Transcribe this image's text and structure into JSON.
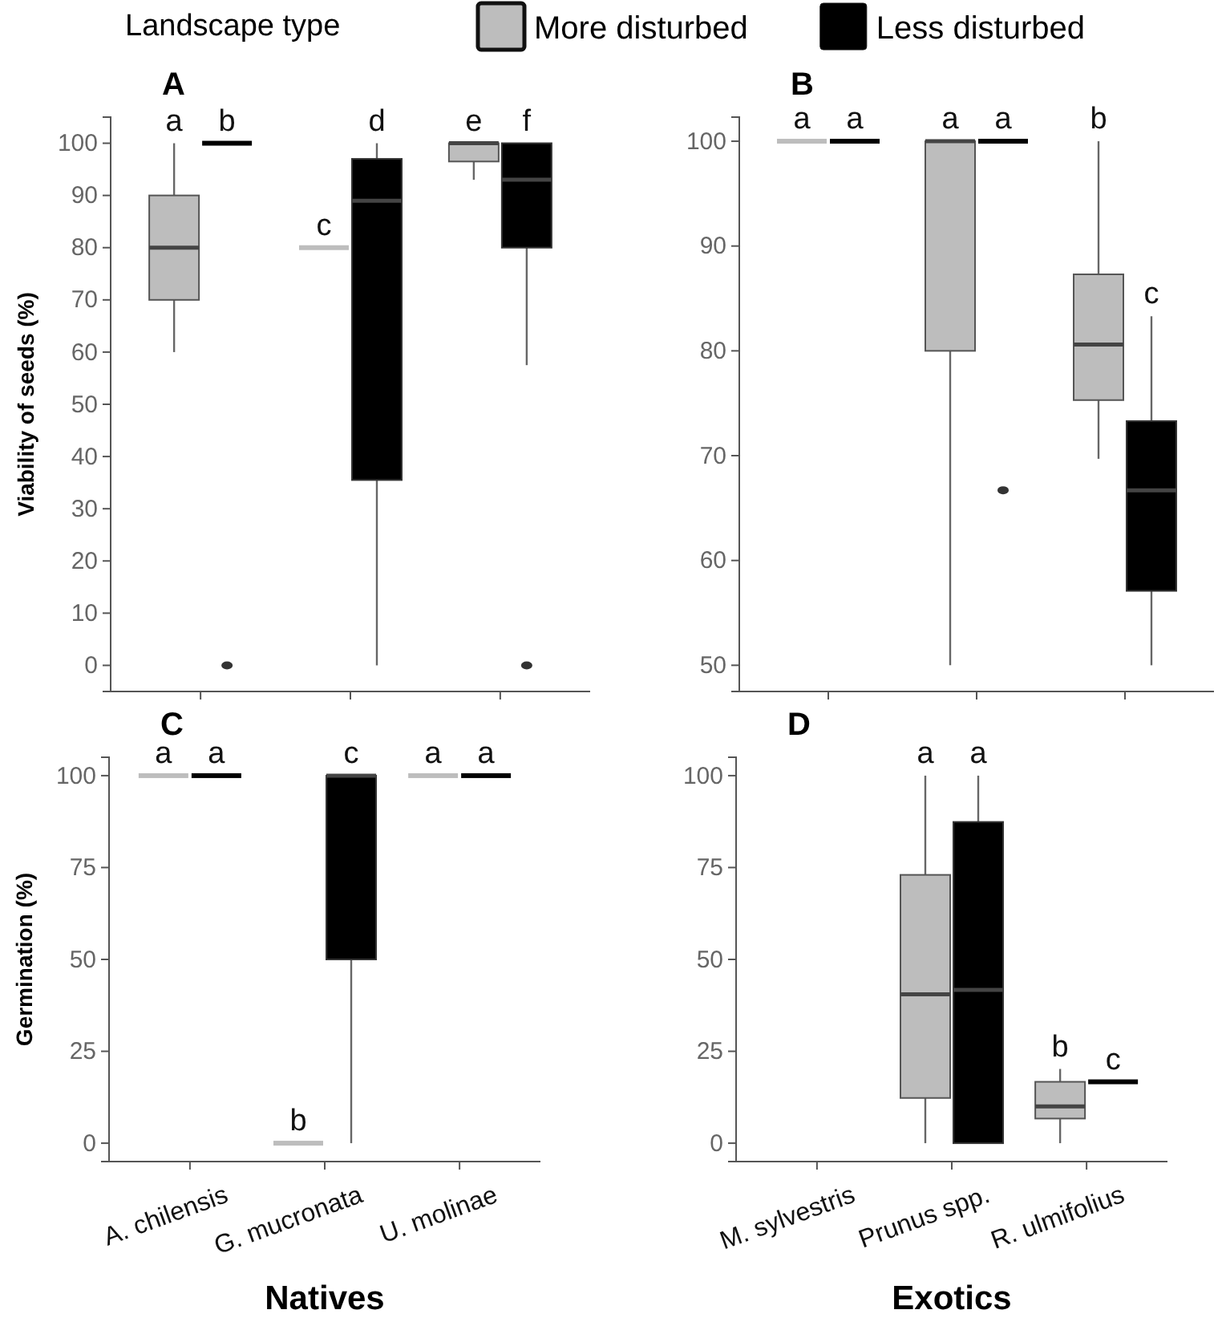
{
  "chart_data": [
    {
      "type": "box",
      "title": "A",
      "ylabel": "Viability of seeds (%)",
      "legend_title": "Landscape type",
      "legend": "top",
      "categories": [
        null,
        null,
        null
      ],
      "ylim": [
        -5,
        105
      ],
      "yticks": [
        0,
        10,
        20,
        30,
        40,
        50,
        60,
        70,
        80,
        90,
        100
      ],
      "series": [
        {
          "name": "More disturbed",
          "color": "#bdbdbd",
          "boxes": [
            {
              "low": 60,
              "q1": 70,
              "median": 80,
              "q3": 90,
              "high": 100
            },
            {
              "low": 80,
              "q1": 80,
              "median": 80,
              "q3": 80,
              "high": 80
            },
            {
              "low": 93,
              "q1": 96.5,
              "median": 100,
              "q3": 100,
              "high": 100
            }
          ]
        },
        {
          "name": "Less disturbed",
          "color": "#000000",
          "boxes": [
            {
              "low": 100,
              "q1": 100,
              "median": 100,
              "q3": 100,
              "high": 100,
              "outliers": [
                0
              ]
            },
            {
              "low": 0,
              "q1": 35.5,
              "median": 89,
              "q3": 97,
              "high": 100
            },
            {
              "low": 57.5,
              "q1": 80,
              "median": 93,
              "q3": 100,
              "high": 100,
              "outliers": [
                0
              ]
            }
          ]
        }
      ],
      "annotations": [
        "a",
        "b",
        "c",
        "d",
        "e",
        "f"
      ]
    },
    {
      "type": "box",
      "title": "B",
      "categories": [
        null,
        null,
        null
      ],
      "ylim": [
        47.5,
        102.3
      ],
      "yticks": [
        50,
        60,
        70,
        80,
        90,
        100
      ],
      "series": [
        {
          "color": "#bdbdbd",
          "boxes": [
            {
              "low": 100,
              "q1": 100,
              "median": 100,
              "q3": 100,
              "high": 100
            },
            {
              "low": 50,
              "q1": 80,
              "median": 100,
              "q3": 100,
              "high": 100
            },
            {
              "low": 69.7,
              "q1": 75.3,
              "median": 80.6,
              "q3": 87.3,
              "high": 100
            }
          ]
        },
        {
          "color": "#000000",
          "boxes": [
            {
              "low": 100,
              "q1": 100,
              "median": 100,
              "q3": 100,
              "high": 100
            },
            {
              "low": 100,
              "q1": 100,
              "median": 100,
              "q3": 100,
              "high": 100,
              "outliers": [
                66.7
              ]
            },
            {
              "low": 50,
              "q1": 57.1,
              "median": 66.7,
              "q3": 73.3,
              "high": 83.3
            }
          ]
        }
      ],
      "annotations": [
        "a",
        "a",
        "a",
        "a",
        "b",
        "c"
      ]
    },
    {
      "type": "box",
      "title": "C",
      "ylabel": "Germination (%)",
      "xlabel": "Natives",
      "categories": [
        "A. chilensis",
        "G. mucronata",
        "U. molinae"
      ],
      "ylim": [
        -5,
        105
      ],
      "yticks": [
        0,
        25,
        50,
        75,
        100
      ],
      "series": [
        {
          "color": "#bdbdbd",
          "boxes": [
            {
              "low": 100,
              "q1": 100,
              "median": 100,
              "q3": 100,
              "high": 100
            },
            {
              "low": 0,
              "q1": 0,
              "median": 0,
              "q3": 0,
              "high": 0
            },
            {
              "low": 100,
              "q1": 100,
              "median": 100,
              "q3": 100,
              "high": 100
            }
          ]
        },
        {
          "color": "#000000",
          "boxes": [
            {
              "low": 100,
              "q1": 100,
              "median": 100,
              "q3": 100,
              "high": 100
            },
            {
              "low": 0,
              "q1": 50,
              "median": 100,
              "q3": 100,
              "high": 100
            },
            {
              "low": 100,
              "q1": 100,
              "median": 100,
              "q3": 100,
              "high": 100
            }
          ]
        }
      ],
      "annotations": [
        "a",
        "a",
        "b",
        "c",
        "a",
        "a"
      ]
    },
    {
      "type": "box",
      "title": "D",
      "xlabel": "Exotics",
      "categories": [
        "M. sylvestris",
        "Prunus spp.",
        "R. ulmifolius"
      ],
      "ylim": [
        -5,
        105
      ],
      "yticks": [
        0,
        25,
        50,
        75,
        100
      ],
      "series": [
        {
          "color": "#bdbdbd",
          "boxes": [
            null,
            {
              "low": 0,
              "q1": 12.3,
              "median": 40.5,
              "q3": 73,
              "high": 100
            },
            {
              "low": 0,
              "q1": 6.7,
              "median": 10,
              "q3": 16.7,
              "high": 20.2
            }
          ]
        },
        {
          "color": "#000000",
          "boxes": [
            null,
            {
              "low": 0,
              "q1": 0,
              "median": 41.7,
              "q3": 87.4,
              "high": 100
            },
            {
              "low": 16.7,
              "q1": 16.7,
              "median": 16.7,
              "q3": 16.7,
              "high": 16.7
            }
          ]
        }
      ],
      "annotations": [
        "a",
        "a",
        "b",
        "c"
      ]
    }
  ]
}
